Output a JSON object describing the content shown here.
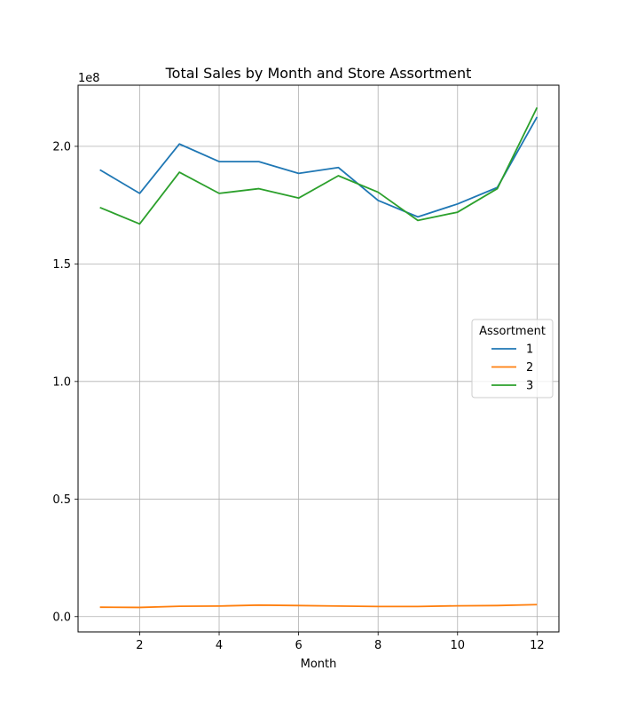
{
  "chart_data": {
    "type": "line",
    "title": "Total Sales by Month and Store Assortment",
    "xlabel": "Month",
    "ylabel": "",
    "y_offset_label": "1e8",
    "x": [
      1,
      2,
      3,
      4,
      5,
      6,
      7,
      8,
      9,
      10,
      11,
      12
    ],
    "x_ticks": [
      2,
      4,
      6,
      8,
      10,
      12
    ],
    "y_ticks": [
      0.0,
      0.5,
      1.0,
      1.5,
      2.0
    ],
    "y_tick_labels": [
      "0.0",
      "0.5",
      "1.0",
      "1.5",
      "2.0"
    ],
    "xlim": [
      0.45,
      12.55
    ],
    "ylim": [
      -0.065,
      2.26
    ],
    "y_unit_multiplier": 100000000,
    "grid": true,
    "legend": {
      "title": "Assortment",
      "placement": "center-right"
    },
    "series": [
      {
        "name": "1",
        "color": "#1f77b4",
        "values": [
          1.9,
          1.8,
          2.01,
          1.935,
          1.935,
          1.885,
          1.91,
          1.77,
          1.7,
          1.755,
          1.825,
          2.125
        ]
      },
      {
        "name": "2",
        "color": "#ff7f0e",
        "values": [
          0.04,
          0.039,
          0.044,
          0.045,
          0.049,
          0.047,
          0.045,
          0.043,
          0.043,
          0.046,
          0.047,
          0.051
        ]
      },
      {
        "name": "3",
        "color": "#2ca02c",
        "values": [
          1.74,
          1.67,
          1.89,
          1.8,
          1.82,
          1.78,
          1.875,
          1.805,
          1.685,
          1.72,
          1.82,
          2.165
        ]
      }
    ]
  }
}
